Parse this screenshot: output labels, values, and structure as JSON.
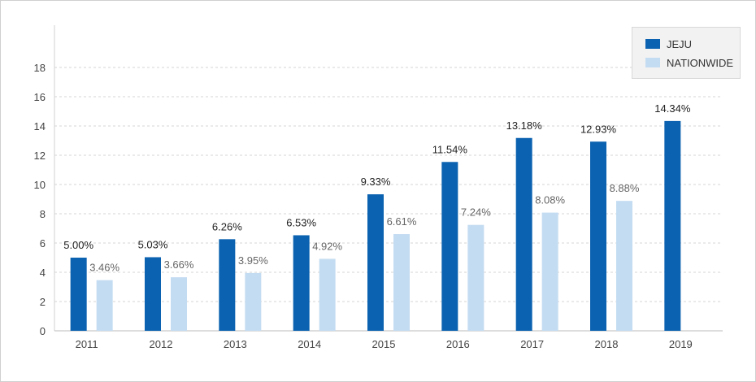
{
  "chart_data": {
    "type": "bar",
    "title": "",
    "xlabel": "",
    "ylabel": "",
    "ylim": [
      0,
      20
    ],
    "yticks": [
      0,
      2,
      4,
      6,
      8,
      10,
      12,
      14,
      16,
      18
    ],
    "grid": true,
    "legend_position": "top-right",
    "categories": [
      "2011",
      "2012",
      "2013",
      "2014",
      "2015",
      "2016",
      "2017",
      "2018",
      "2019"
    ],
    "series": [
      {
        "name": "JEJU",
        "color": "#0b62b0",
        "values": [
          5.0,
          5.03,
          6.26,
          6.53,
          9.33,
          11.54,
          13.18,
          12.93,
          14.34
        ],
        "labels": [
          "5.00%",
          "5.03%",
          "6.26%",
          "6.53%",
          "9.33%",
          "11.54%",
          "13.18%",
          "12.93%",
          "14.34%"
        ]
      },
      {
        "name": "NATIONWIDE",
        "color": "#c4dcf2",
        "values": [
          3.46,
          3.66,
          3.95,
          4.92,
          6.61,
          7.24,
          8.08,
          8.88,
          null
        ],
        "labels": [
          "3.46%",
          "3.66%",
          "3.95%",
          "4.92%",
          "6.61%",
          "7.24%",
          "8.08%",
          "8.88%",
          ""
        ]
      }
    ]
  }
}
